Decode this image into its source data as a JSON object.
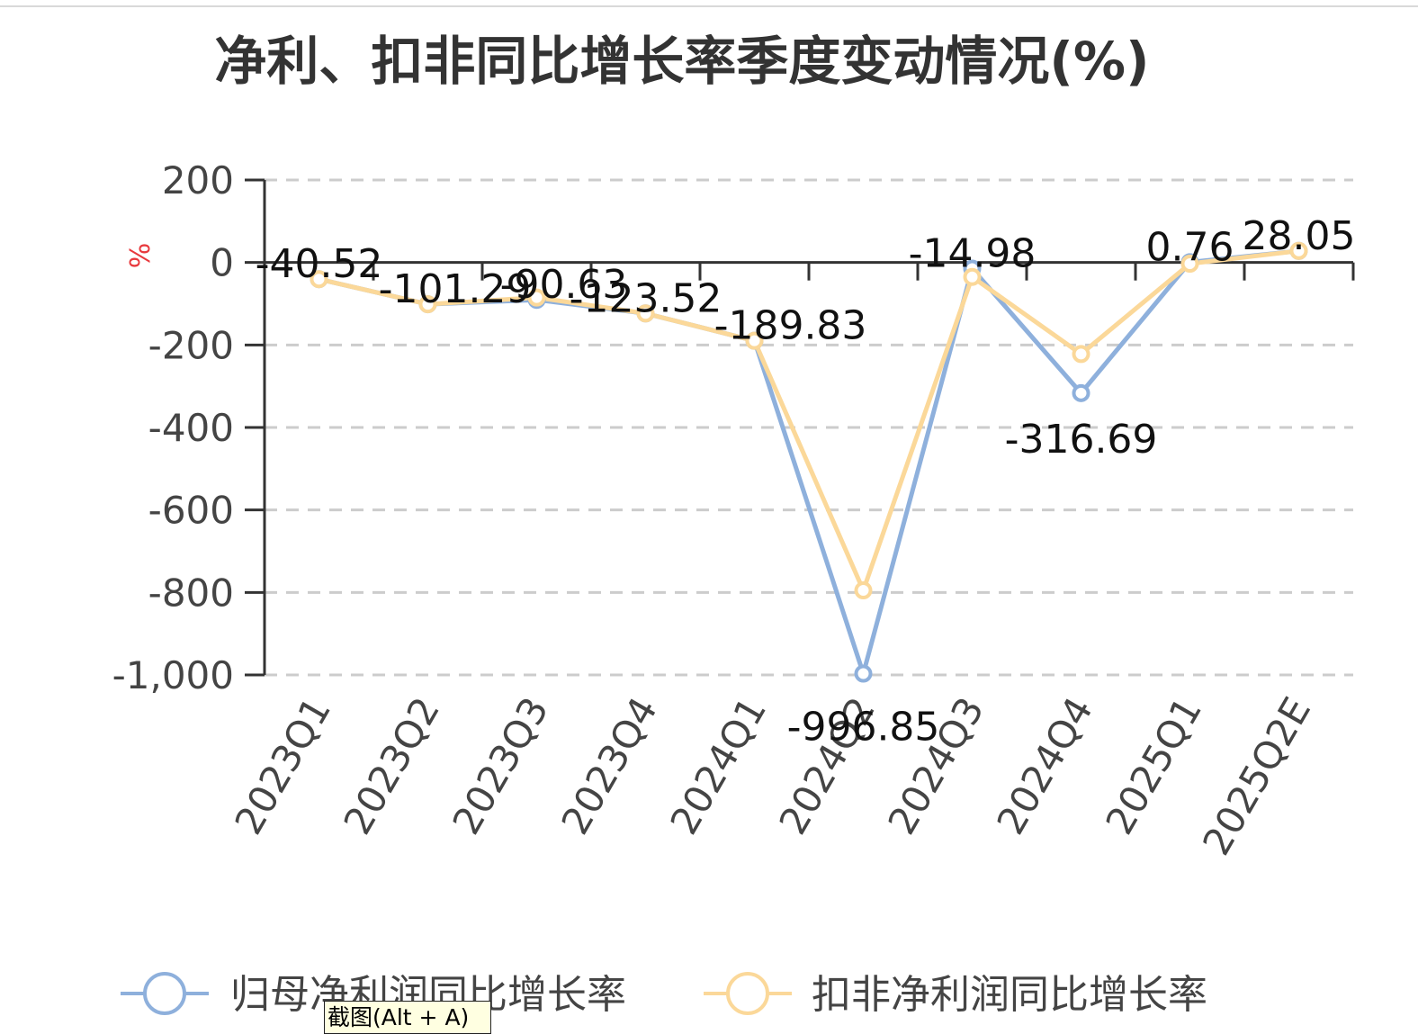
{
  "chart_data": {
    "type": "line",
    "title": "净利、扣非同比增长率季度变动情况(%)",
    "ylabel": "%",
    "xlabel": "",
    "categories": [
      "2023Q1",
      "2023Q2",
      "2023Q3",
      "2023Q4",
      "2024Q1",
      "2024Q2",
      "2024Q3",
      "2024Q4",
      "2025Q1",
      "2025Q2E"
    ],
    "y_ticks": [
      200,
      0,
      -200,
      -400,
      -600,
      -800,
      -1000
    ],
    "y_tick_labels": [
      "200",
      "0",
      "-200",
      "-400",
      "-600",
      "-800",
      "-1,000"
    ],
    "ylim": [
      -1000,
      200
    ],
    "grid": true,
    "legend_position": "bottom",
    "series": [
      {
        "name": "归母净利润同比增长率",
        "color": "#8eb0dc",
        "values": [
          -40.52,
          -101.29,
          -90.63,
          -123.52,
          -189.83,
          -996.85,
          -14.98,
          -316.69,
          0.76,
          28.05
        ]
      },
      {
        "name": "扣非净利润同比增长率",
        "color": "#fbd899",
        "values": [
          -40.52,
          -101.29,
          -85,
          -123.52,
          -189.83,
          -795,
          -35,
          -222,
          -3,
          28.05
        ]
      }
    ],
    "data_labels": [
      "-40.52",
      "-101.29",
      "-90.63",
      "-123.52",
      "-189.83",
      "-996.85",
      "-14.98",
      "-316.69",
      "0.76",
      "28.05"
    ]
  },
  "tooltip": {
    "text": "截图(Alt + A)"
  },
  "colors": {
    "axis": "#333333",
    "grid": "#cccccc",
    "ylabel": "#e8393d"
  }
}
